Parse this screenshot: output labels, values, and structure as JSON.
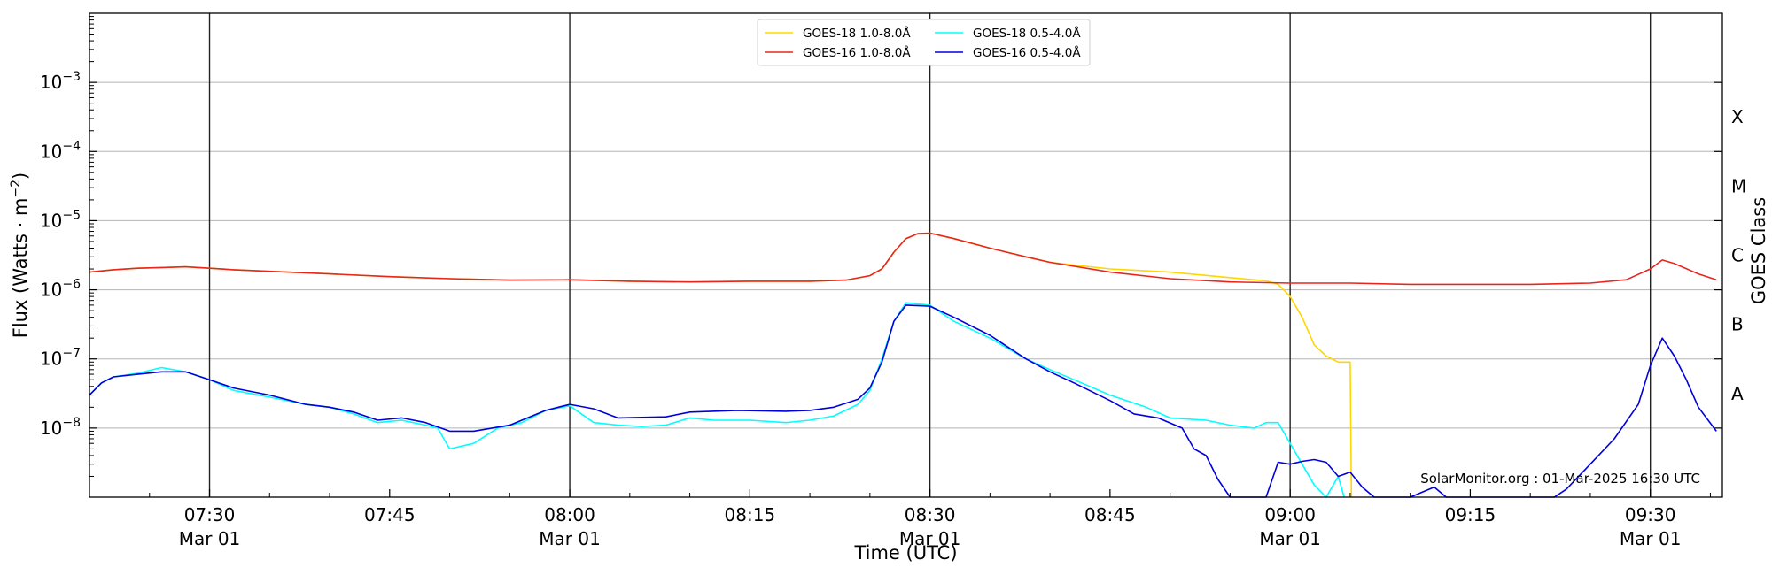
{
  "chart_data": {
    "type": "line",
    "xlabel": "Time (UTC)",
    "ylabel": "Flux (Watts · m",
    "ylabel_superscript": "−2",
    "ylabel_close": ")",
    "right_label": "GOES Class",
    "watermark": "SolarMonitor.org : 01-Mar-2025 16:30 UTC",
    "ylim": [
      1e-09,
      0.01
    ],
    "yscale": "log",
    "xlim": [
      "07:20",
      "09:36"
    ],
    "grid": "horizontal at decades, vertical black lines on half-hours",
    "legend_placement": "top-center",
    "x_ticks": [
      {
        "time": "07:30",
        "label": "07:30",
        "date": "Mar 01",
        "major": true
      },
      {
        "time": "07:45",
        "label": "07:45",
        "date": "",
        "major": false
      },
      {
        "time": "08:00",
        "label": "08:00",
        "date": "Mar 01",
        "major": true
      },
      {
        "time": "08:15",
        "label": "08:15",
        "date": "",
        "major": false
      },
      {
        "time": "08:30",
        "label": "08:30",
        "date": "Mar 01",
        "major": true
      },
      {
        "time": "08:45",
        "label": "08:45",
        "date": "",
        "major": false
      },
      {
        "time": "09:00",
        "label": "09:00",
        "date": "Mar 01",
        "major": true
      },
      {
        "time": "09:15",
        "label": "09:15",
        "date": "",
        "major": false
      },
      {
        "time": "09:30",
        "label": "09:30",
        "date": "Mar 01",
        "major": true
      }
    ],
    "y_ticks": [
      {
        "value": 1e-08,
        "base": "10",
        "exp": "−8"
      },
      {
        "value": 1e-07,
        "base": "10",
        "exp": "−7"
      },
      {
        "value": 1e-06,
        "base": "10",
        "exp": "−6"
      },
      {
        "value": 1e-05,
        "base": "10",
        "exp": "−5"
      },
      {
        "value": 0.0001,
        "base": "10",
        "exp": "−4"
      },
      {
        "value": 0.001,
        "base": "10",
        "exp": "−3"
      }
    ],
    "goes_classes": [
      {
        "label": "A",
        "value": 3.16e-08
      },
      {
        "label": "B",
        "value": 3.16e-07
      },
      {
        "label": "C",
        "value": 3.16e-06
      },
      {
        "label": "M",
        "value": 3.16e-05
      },
      {
        "label": "X",
        "value": 0.000316
      }
    ],
    "series": [
      {
        "name": "GOES-18 1.0-8.0Å",
        "color": "#FFD700",
        "points": [
          [
            "07:20",
            1.8e-06
          ],
          [
            "07:22",
            1.95e-06
          ],
          [
            "07:24",
            2.05e-06
          ],
          [
            "07:26",
            2.1e-06
          ],
          [
            "07:28",
            2.15e-06
          ],
          [
            "07:30",
            2.05e-06
          ],
          [
            "07:32",
            1.95e-06
          ],
          [
            "07:35",
            1.85e-06
          ],
          [
            "07:40",
            1.7e-06
          ],
          [
            "07:45",
            1.55e-06
          ],
          [
            "07:50",
            1.45e-06
          ],
          [
            "07:55",
            1.38e-06
          ],
          [
            "08:00",
            1.4e-06
          ],
          [
            "08:05",
            1.33e-06
          ],
          [
            "08:10",
            1.3e-06
          ],
          [
            "08:15",
            1.33e-06
          ],
          [
            "08:20",
            1.33e-06
          ],
          [
            "08:23",
            1.38e-06
          ],
          [
            "08:25",
            1.6e-06
          ],
          [
            "08:26",
            2e-06
          ],
          [
            "08:27",
            3.5e-06
          ],
          [
            "08:28",
            5.5e-06
          ],
          [
            "08:29",
            6.5e-06
          ],
          [
            "08:30",
            6.6e-06
          ],
          [
            "08:32",
            5.5e-06
          ],
          [
            "08:35",
            4e-06
          ],
          [
            "08:38",
            3e-06
          ],
          [
            "08:40",
            2.5e-06
          ],
          [
            "08:45",
            2e-06
          ],
          [
            "08:50",
            1.8e-06
          ],
          [
            "08:55",
            1.5e-06
          ],
          [
            "08:58",
            1.35e-06
          ],
          [
            "08:59",
            1.2e-06
          ],
          [
            "09:00",
            8e-07
          ],
          [
            "09:01",
            4e-07
          ],
          [
            "09:02",
            1.6e-07
          ],
          [
            "09:03",
            1.1e-07
          ],
          [
            "09:04",
            9e-08
          ],
          [
            "09:05",
            9e-08
          ],
          [
            "09:05.1",
            1e-09
          ]
        ]
      },
      {
        "name": "GOES-16 1.0-8.0Å",
        "color": "#E8261E",
        "points": [
          [
            "07:20",
            1.8e-06
          ],
          [
            "07:22",
            1.95e-06
          ],
          [
            "07:24",
            2.05e-06
          ],
          [
            "07:26",
            2.1e-06
          ],
          [
            "07:28",
            2.15e-06
          ],
          [
            "07:30",
            2.05e-06
          ],
          [
            "07:32",
            1.95e-06
          ],
          [
            "07:35",
            1.85e-06
          ],
          [
            "07:40",
            1.7e-06
          ],
          [
            "07:45",
            1.55e-06
          ],
          [
            "07:50",
            1.45e-06
          ],
          [
            "07:55",
            1.38e-06
          ],
          [
            "08:00",
            1.4e-06
          ],
          [
            "08:05",
            1.33e-06
          ],
          [
            "08:10",
            1.3e-06
          ],
          [
            "08:15",
            1.33e-06
          ],
          [
            "08:20",
            1.33e-06
          ],
          [
            "08:23",
            1.38e-06
          ],
          [
            "08:25",
            1.6e-06
          ],
          [
            "08:26",
            2e-06
          ],
          [
            "08:27",
            3.5e-06
          ],
          [
            "08:28",
            5.5e-06
          ],
          [
            "08:29",
            6.5e-06
          ],
          [
            "08:30",
            6.6e-06
          ],
          [
            "08:32",
            5.5e-06
          ],
          [
            "08:35",
            4e-06
          ],
          [
            "08:38",
            3e-06
          ],
          [
            "08:40",
            2.5e-06
          ],
          [
            "08:45",
            1.8e-06
          ],
          [
            "08:50",
            1.45e-06
          ],
          [
            "08:55",
            1.3e-06
          ],
          [
            "09:00",
            1.25e-06
          ],
          [
            "09:05",
            1.25e-06
          ],
          [
            "09:10",
            1.2e-06
          ],
          [
            "09:15",
            1.2e-06
          ],
          [
            "09:20",
            1.2e-06
          ],
          [
            "09:25",
            1.25e-06
          ],
          [
            "09:28",
            1.4e-06
          ],
          [
            "09:30",
            2e-06
          ],
          [
            "09:31",
            2.7e-06
          ],
          [
            "09:32",
            2.4e-06
          ],
          [
            "09:34",
            1.7e-06
          ],
          [
            "09:35.5",
            1.4e-06
          ]
        ]
      },
      {
        "name": "GOES-18 0.5-4.0Å",
        "color": "#00FFFF",
        "points": [
          [
            "07:20",
            3e-08
          ],
          [
            "07:21",
            4.5e-08
          ],
          [
            "07:22",
            5.5e-08
          ],
          [
            "07:24",
            6.2e-08
          ],
          [
            "07:26",
            7.5e-08
          ],
          [
            "07:28",
            6.5e-08
          ],
          [
            "07:30",
            5e-08
          ],
          [
            "07:32",
            3.5e-08
          ],
          [
            "07:35",
            2.8e-08
          ],
          [
            "07:38",
            2.2e-08
          ],
          [
            "07:40",
            2e-08
          ],
          [
            "07:42",
            1.6e-08
          ],
          [
            "07:44",
            1.2e-08
          ],
          [
            "07:46",
            1.3e-08
          ],
          [
            "07:48",
            1.1e-08
          ],
          [
            "07:49",
            1e-08
          ],
          [
            "07:50",
            5e-09
          ],
          [
            "07:52",
            6e-09
          ],
          [
            "07:54",
            1e-08
          ],
          [
            "07:56",
            1.2e-08
          ],
          [
            "07:58",
            1.8e-08
          ],
          [
            "08:00",
            2.1e-08
          ],
          [
            "08:02",
            1.2e-08
          ],
          [
            "08:04",
            1.1e-08
          ],
          [
            "08:06",
            1.05e-08
          ],
          [
            "08:08",
            1.1e-08
          ],
          [
            "08:10",
            1.4e-08
          ],
          [
            "08:12",
            1.3e-08
          ],
          [
            "08:15",
            1.3e-08
          ],
          [
            "08:18",
            1.2e-08
          ],
          [
            "08:20",
            1.3e-08
          ],
          [
            "08:22",
            1.5e-08
          ],
          [
            "08:24",
            2.2e-08
          ],
          [
            "08:25",
            3.5e-08
          ],
          [
            "08:26",
            1e-07
          ],
          [
            "08:27",
            3.5e-07
          ],
          [
            "08:28",
            6.5e-07
          ],
          [
            "08:30",
            6e-07
          ],
          [
            "08:32",
            3.5e-07
          ],
          [
            "08:35",
            2e-07
          ],
          [
            "08:38",
            1e-07
          ],
          [
            "08:40",
            7e-08
          ],
          [
            "08:42",
            5e-08
          ],
          [
            "08:45",
            3e-08
          ],
          [
            "08:48",
            2e-08
          ],
          [
            "08:50",
            1.4e-08
          ],
          [
            "08:53",
            1.3e-08
          ],
          [
            "08:55",
            1.1e-08
          ],
          [
            "08:57",
            1e-08
          ],
          [
            "08:58",
            1.2e-08
          ],
          [
            "08:59",
            1.2e-08
          ],
          [
            "09:00",
            6e-09
          ],
          [
            "09:01",
            3e-09
          ],
          [
            "09:02",
            1.5e-09
          ],
          [
            "09:03",
            1e-09
          ],
          [
            "09:04",
            2e-09
          ],
          [
            "09:04.5",
            1e-09
          ]
        ]
      },
      {
        "name": "GOES-16 0.5-4.0Å",
        "color": "#0000DD",
        "points": [
          [
            "07:20",
            3e-08
          ],
          [
            "07:21",
            4.5e-08
          ],
          [
            "07:22",
            5.5e-08
          ],
          [
            "07:24",
            6e-08
          ],
          [
            "07:26",
            6.5e-08
          ],
          [
            "07:28",
            6.5e-08
          ],
          [
            "07:30",
            5e-08
          ],
          [
            "07:32",
            3.8e-08
          ],
          [
            "07:35",
            3e-08
          ],
          [
            "07:38",
            2.2e-08
          ],
          [
            "07:40",
            2e-08
          ],
          [
            "07:42",
            1.7e-08
          ],
          [
            "07:44",
            1.3e-08
          ],
          [
            "07:46",
            1.4e-08
          ],
          [
            "07:48",
            1.2e-08
          ],
          [
            "07:50",
            9e-09
          ],
          [
            "07:52",
            9e-09
          ],
          [
            "07:55",
            1.1e-08
          ],
          [
            "07:58",
            1.8e-08
          ],
          [
            "08:00",
            2.2e-08
          ],
          [
            "08:02",
            1.9e-08
          ],
          [
            "08:04",
            1.4e-08
          ],
          [
            "08:08",
            1.45e-08
          ],
          [
            "08:10",
            1.7e-08
          ],
          [
            "08:14",
            1.8e-08
          ],
          [
            "08:18",
            1.75e-08
          ],
          [
            "08:20",
            1.8e-08
          ],
          [
            "08:22",
            2e-08
          ],
          [
            "08:24",
            2.6e-08
          ],
          [
            "08:25",
            3.8e-08
          ],
          [
            "08:26",
            9e-08
          ],
          [
            "08:27",
            3.5e-07
          ],
          [
            "08:28",
            6e-07
          ],
          [
            "08:30",
            5.8e-07
          ],
          [
            "08:32",
            4e-07
          ],
          [
            "08:35",
            2.2e-07
          ],
          [
            "08:38",
            1e-07
          ],
          [
            "08:40",
            6.5e-08
          ],
          [
            "08:42",
            4.5e-08
          ],
          [
            "08:45",
            2.5e-08
          ],
          [
            "08:47",
            1.6e-08
          ],
          [
            "08:49",
            1.4e-08
          ],
          [
            "08:51",
            1e-08
          ],
          [
            "08:52",
            5e-09
          ],
          [
            "08:53",
            4e-09
          ],
          [
            "08:54",
            1.8e-09
          ],
          [
            "08:55",
            1e-09
          ],
          [
            "08:57",
            1e-09
          ],
          [
            "08:58",
            1e-09
          ],
          [
            "08:59",
            3.2e-09
          ],
          [
            "09:00",
            3e-09
          ],
          [
            "09:01",
            3.3e-09
          ],
          [
            "09:02",
            3.5e-09
          ],
          [
            "09:03",
            3.2e-09
          ],
          [
            "09:04",
            2e-09
          ],
          [
            "09:05",
            2.3e-09
          ],
          [
            "09:06",
            1.4e-09
          ],
          [
            "09:07",
            1e-09
          ],
          [
            "09:10",
            1e-09
          ],
          [
            "09:12",
            1.4e-09
          ],
          [
            "09:13",
            1e-09
          ],
          [
            "09:22",
            1e-09
          ],
          [
            "09:23",
            1.3e-09
          ],
          [
            "09:25",
            3e-09
          ],
          [
            "09:27",
            7e-09
          ],
          [
            "09:29",
            2.2e-08
          ],
          [
            "09:30",
            8e-08
          ],
          [
            "09:31",
            2e-07
          ],
          [
            "09:32",
            1.1e-07
          ],
          [
            "09:33",
            5e-08
          ],
          [
            "09:34",
            2e-08
          ],
          [
            "09:35.5",
            9e-09
          ]
        ]
      }
    ]
  }
}
